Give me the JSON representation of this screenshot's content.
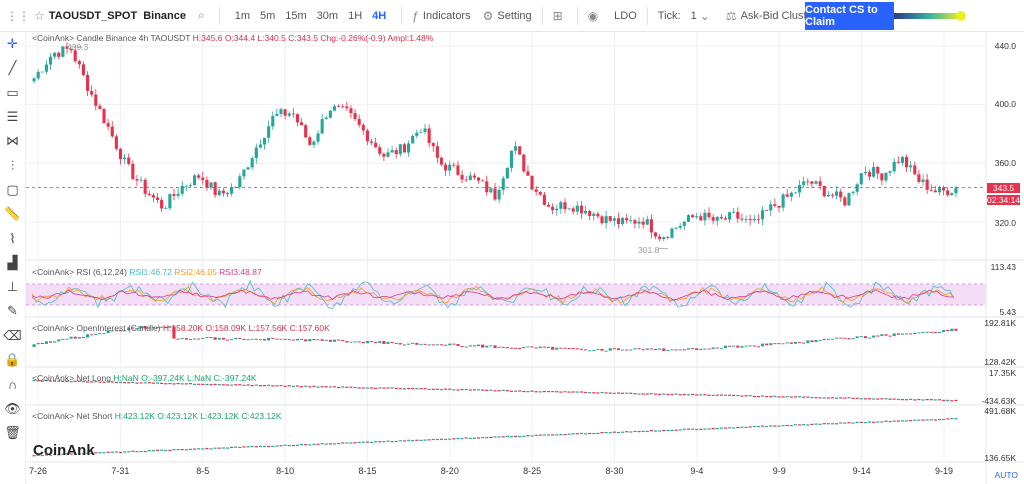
{
  "toolbar": {
    "symbol": "TAOUSDT_SPOT",
    "exchange": "Binance",
    "intervals": [
      "1m",
      "5m",
      "15m",
      "30m",
      "1H",
      "4H"
    ],
    "active_interval": "4H",
    "indicators_label": "Indicators",
    "setting_label": "Setting",
    "ldo_label": "LDO",
    "tick_label": "Tick:",
    "tick_value": "1",
    "cluster_label": "Ask-Bid Cluster",
    "cs_button": "Contact CS to Claim"
  },
  "legends": {
    "candle_prefix": "<CoinAnk> Candle  Binance 4h TAOUSDT",
    "h": "H:345.6",
    "o": "O:344.4",
    "l": "L:340.5",
    "c": "C:343.5",
    "chg": "Chg:-0.26%(-0.9)",
    "ampl": "Ampl:1.48%",
    "rsi_prefix": "<CoinAnk> RSI  (6,12,24)",
    "rsi1": "RSI1:46.72",
    "rsi2": "RSI2:46.05",
    "rsi3": "RSI3:48.87",
    "oi_prefix": "<CoinAnk> OpenInterest (Candle)",
    "oi_h": "H:158.20K",
    "oi_o": "O:158.09K",
    "oi_l": "L:157.56K",
    "oi_c": "C:157.60K",
    "nl_prefix": "<CoinAnk> Net Long",
    "nl_h": "H:NaN",
    "nl_o": "O:-397.24K",
    "nl_l": "L:NaN",
    "nl_c": "C:-397.24K",
    "ns_prefix": "<CoinAnk> Net Short",
    "ns_h": "H:423.12K",
    "ns_o": "O:423.12K",
    "ns_l": "L:423.12K",
    "ns_c": "C:423.12K"
  },
  "annotations": {
    "high_marker": "439.3",
    "low_marker": "301.8"
  },
  "price_axis": [
    "440.0",
    "400.0",
    "360.0",
    "320.0"
  ],
  "current_price": "343.5",
  "countdown": "02:34:14",
  "rsi_axis": [
    "113.43",
    "5.43"
  ],
  "oi_axis": [
    "192.81K",
    "128.42K"
  ],
  "nl_axis": [
    "17.35K",
    "-434.63K"
  ],
  "ns_axis": [
    "491.68K",
    "136.65K"
  ],
  "x_axis": [
    "7-26",
    "7-31",
    "8-5",
    "8-10",
    "8-15",
    "8-20",
    "8-25",
    "8-30",
    "9-4",
    "9-9",
    "9-14",
    "9-19"
  ],
  "watermark": "CoinAnk",
  "auto_label": "AUTO",
  "colors": {
    "up": "#26a69a",
    "down": "#e5334d",
    "accent": "#2962ff"
  },
  "chart_data": {
    "type": "candlestick",
    "x": [
      "7-26",
      "7-31",
      "8-5",
      "8-10",
      "8-15",
      "8-20",
      "8-25",
      "8-30",
      "9-4",
      "9-9",
      "9-14",
      "9-19"
    ],
    "close_path": [
      418,
      435,
      438,
      410,
      385,
      358,
      342,
      330,
      344,
      352,
      338,
      345,
      370,
      392,
      395,
      372,
      398,
      394,
      380,
      365,
      370,
      385,
      360,
      354,
      348,
      338,
      372,
      346,
      330,
      332,
      328,
      322,
      319,
      322,
      310,
      318,
      325,
      320,
      324,
      318,
      330,
      338,
      348,
      340,
      334,
      356,
      352,
      364,
      348,
      340,
      343
    ],
    "ylim": [
      295,
      450
    ],
    "high_marker": 439.3,
    "low_marker": 301.8,
    "last": 343.5
  }
}
